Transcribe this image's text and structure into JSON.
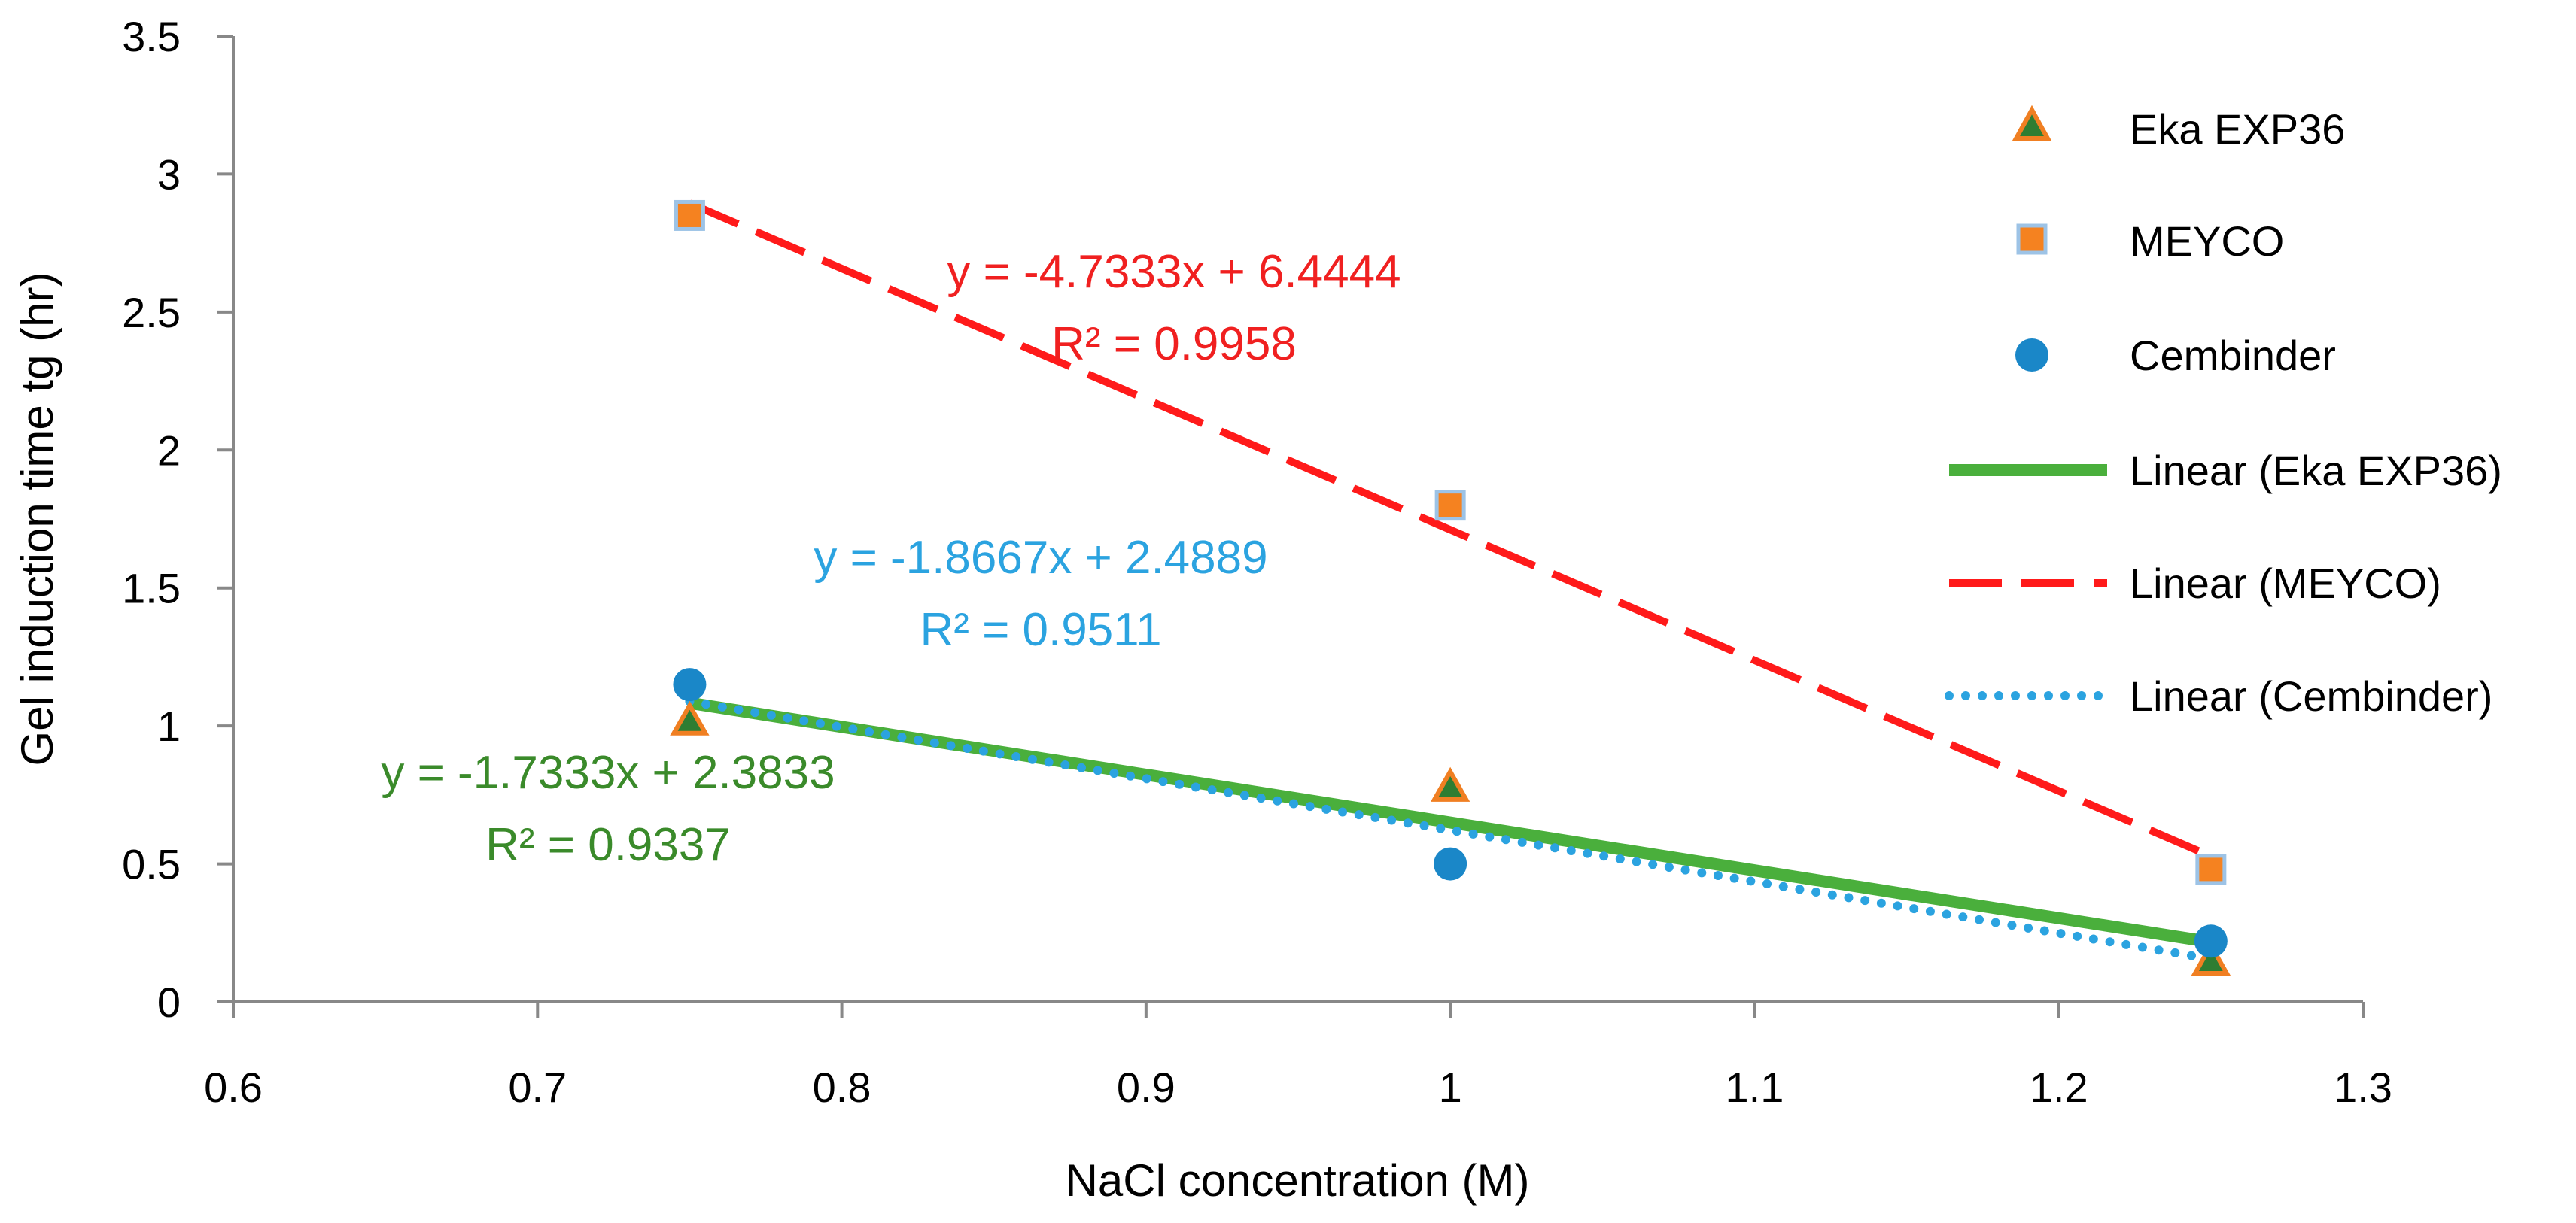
{
  "chart_data": {
    "type": "scatter",
    "title": "",
    "xlabel": "NaCl concentration (M)",
    "ylabel": "Gel induction time tg (hr)",
    "xlim": [
      0.6,
      1.3
    ],
    "ylim": [
      0,
      3.5
    ],
    "x_ticks": [
      "0.6",
      "0.7",
      "0.8",
      "0.9",
      "1",
      "1.1",
      "1.2",
      "1.3"
    ],
    "y_ticks": [
      "0",
      "0.5",
      "1",
      "1.5",
      "2",
      "2.5",
      "3",
      "3.5"
    ],
    "grid": false,
    "legend_position": "right",
    "series": [
      {
        "name": "Eka EXP36",
        "marker": "triangle",
        "color": "#2E7D32",
        "edge_color": "#F07F22",
        "x": [
          0.75,
          1.0,
          1.25
        ],
        "y": [
          1.02,
          0.78,
          0.15
        ]
      },
      {
        "name": "MEYCO",
        "marker": "square",
        "color": "#F58220",
        "edge_color": "#9DC3E6",
        "x": [
          0.75,
          1.0,
          1.25
        ],
        "y": [
          2.85,
          1.8,
          0.48
        ]
      },
      {
        "name": "Cembinder",
        "marker": "circle",
        "color": "#1A87C8",
        "edge_color": "#1A87C8",
        "x": [
          0.75,
          1.0,
          1.25
        ],
        "y": [
          1.15,
          0.5,
          0.22
        ]
      }
    ],
    "trendlines": [
      {
        "name": "Linear (Eka EXP36)",
        "style": "solid",
        "color": "#4AAF3C",
        "slope": -1.7333,
        "intercept": 2.3833,
        "x_range": [
          0.75,
          1.25
        ],
        "equation": "y = -1.7333x + 2.3833",
        "r2": "R² = 0.9337",
        "label_color": "#3A8A2A"
      },
      {
        "name": "Linear (MEYCO)",
        "style": "dashed",
        "color": "#FF1A1A",
        "slope": -4.7333,
        "intercept": 6.4444,
        "x_range": [
          0.75,
          1.25
        ],
        "equation": "y = -4.7333x + 6.4444",
        "r2": "R² = 0.9958",
        "label_color": "#F02020"
      },
      {
        "name": "Linear (Cembinder)",
        "style": "dotted",
        "color": "#2BA3E0",
        "slope": -1.8667,
        "intercept": 2.4889,
        "x_range": [
          0.75,
          1.25
        ],
        "equation": "y = -1.8667x + 2.4889",
        "r2": "R² = 0.9511",
        "label_color": "#2BA3E0"
      }
    ]
  }
}
